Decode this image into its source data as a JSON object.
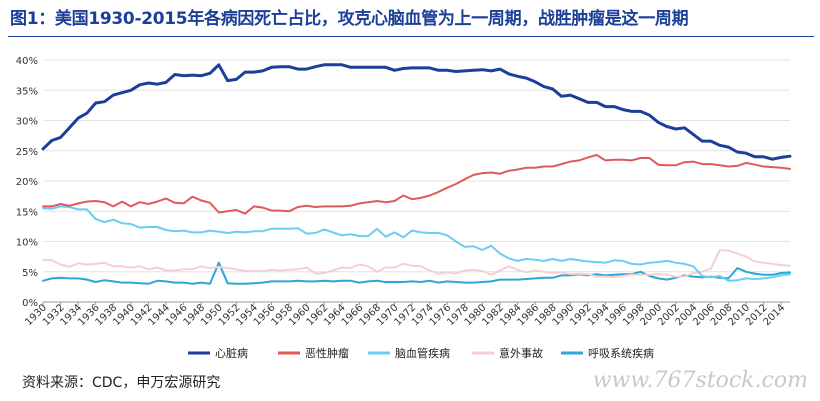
{
  "title": "图1：美国1930-2015年各病因死亡占比，攻克心脑血管为上一周期，战胜肿瘤是这一周期",
  "source": "资料来源：CDC，申万宏源研究",
  "watermark": "www.767stock.com",
  "chart_data": {
    "type": "line",
    "title": "",
    "xlabel": "",
    "ylabel": "",
    "ylim": [
      0,
      40
    ],
    "yticks": [
      0,
      5,
      10,
      15,
      20,
      25,
      30,
      35,
      40
    ],
    "ytick_labels": [
      "0%",
      "5%",
      "10%",
      "15%",
      "20%",
      "25%",
      "30%",
      "35%",
      "40%"
    ],
    "xlim": [
      1930,
      2015
    ],
    "xticks": [
      1930,
      1932,
      1934,
      1936,
      1938,
      1940,
      1942,
      1944,
      1946,
      1948,
      1950,
      1952,
      1954,
      1956,
      1958,
      1960,
      1962,
      1964,
      1966,
      1968,
      1970,
      1972,
      1974,
      1976,
      1978,
      1980,
      1982,
      1984,
      1986,
      1988,
      1990,
      1992,
      1994,
      1996,
      1998,
      2000,
      2002,
      2004,
      2006,
      2008,
      2010,
      2012,
      2014
    ],
    "grid": "horizontal",
    "legend": "bottom",
    "x": [
      1930,
      1931,
      1932,
      1933,
      1934,
      1935,
      1936,
      1937,
      1938,
      1939,
      1940,
      1941,
      1942,
      1943,
      1944,
      1945,
      1946,
      1947,
      1948,
      1949,
      1950,
      1951,
      1952,
      1953,
      1954,
      1955,
      1956,
      1957,
      1958,
      1959,
      1960,
      1961,
      1962,
      1963,
      1964,
      1965,
      1966,
      1967,
      1968,
      1969,
      1970,
      1971,
      1972,
      1973,
      1974,
      1975,
      1976,
      1977,
      1978,
      1979,
      1980,
      1981,
      1982,
      1983,
      1984,
      1985,
      1986,
      1987,
      1988,
      1989,
      1990,
      1991,
      1992,
      1993,
      1994,
      1995,
      1996,
      1997,
      1998,
      1999,
      2000,
      2001,
      2002,
      2003,
      2004,
      2005,
      2006,
      2007,
      2008,
      2009,
      2010,
      2011,
      2012,
      2013,
      2014,
      2015
    ],
    "series": [
      {
        "name": "心脏病",
        "color": "#1c3f99",
        "width": 3,
        "values": [
          25.3,
          26.7,
          27.2,
          28.8,
          30.4,
          31.2,
          32.9,
          33.1,
          34.2,
          34.6,
          35.0,
          35.9,
          36.2,
          36.0,
          36.3,
          37.6,
          37.4,
          37.5,
          37.4,
          37.8,
          39.2,
          36.6,
          36.8,
          38.0,
          38.0,
          38.2,
          38.8,
          38.9,
          38.9,
          38.5,
          38.5,
          38.9,
          39.2,
          39.2,
          39.2,
          38.8,
          38.8,
          38.8,
          38.8,
          38.8,
          38.3,
          38.6,
          38.7,
          38.7,
          38.7,
          38.3,
          38.3,
          38.1,
          38.2,
          38.3,
          38.4,
          38.2,
          38.5,
          37.7,
          37.3,
          37.0,
          36.4,
          35.6,
          35.2,
          34.0,
          34.2,
          33.6,
          33.0,
          33.0,
          32.3,
          32.3,
          31.8,
          31.5,
          31.5,
          30.9,
          29.7,
          29.0,
          28.6,
          28.8,
          27.7,
          26.6,
          26.6,
          25.9,
          25.6,
          24.8,
          24.6,
          24.0,
          24.0,
          23.6,
          23.9,
          24.1
        ]
      },
      {
        "name": "恶性肿瘤",
        "color": "#e05a5a",
        "width": 2,
        "values": [
          15.8,
          15.8,
          16.2,
          15.9,
          16.3,
          16.6,
          16.7,
          16.5,
          15.8,
          16.6,
          15.8,
          16.5,
          16.2,
          16.6,
          17.1,
          16.4,
          16.3,
          17.4,
          16.8,
          16.4,
          14.8,
          15.0,
          15.2,
          14.6,
          15.8,
          15.6,
          15.1,
          15.1,
          15.0,
          15.7,
          15.9,
          15.7,
          15.8,
          15.8,
          15.8,
          15.9,
          16.3,
          16.5,
          16.7,
          16.5,
          16.7,
          17.6,
          17.0,
          17.2,
          17.6,
          18.2,
          18.9,
          19.5,
          20.3,
          21.0,
          21.3,
          21.4,
          21.2,
          21.7,
          21.9,
          22.2,
          22.2,
          22.4,
          22.4,
          22.8,
          23.2,
          23.4,
          23.9,
          24.3,
          23.4,
          23.5,
          23.5,
          23.4,
          23.8,
          23.8,
          22.7,
          22.6,
          22.6,
          23.1,
          23.2,
          22.8,
          22.8,
          22.6,
          22.4,
          22.5,
          23.0,
          22.7,
          22.4,
          22.3,
          22.2,
          22.0
        ]
      },
      {
        "name": "脑血管疾病",
        "color": "#6ccdf0",
        "width": 2,
        "values": [
          15.5,
          15.4,
          15.8,
          15.7,
          15.3,
          15.3,
          13.7,
          13.2,
          13.6,
          13.0,
          12.9,
          12.3,
          12.4,
          12.4,
          11.9,
          11.7,
          11.8,
          11.5,
          11.5,
          11.8,
          11.6,
          11.4,
          11.6,
          11.5,
          11.7,
          11.7,
          12.1,
          12.1,
          12.1,
          12.2,
          11.3,
          11.4,
          12.0,
          11.5,
          11.0,
          11.2,
          10.9,
          10.9,
          12.1,
          10.8,
          11.5,
          10.7,
          11.8,
          11.5,
          11.4,
          11.4,
          11.0,
          10.0,
          9.1,
          9.2,
          8.6,
          9.3,
          8.0,
          7.2,
          6.8,
          7.1,
          7.0,
          6.8,
          7.1,
          6.8,
          7.1,
          6.9,
          6.7,
          6.6,
          6.5,
          6.9,
          6.8,
          6.3,
          6.2,
          6.5,
          6.6,
          6.8,
          6.5,
          6.3,
          5.9,
          4.3,
          4.1,
          4.3,
          3.5,
          3.6,
          3.9,
          3.8,
          3.9,
          4.1,
          4.4,
          4.6
        ]
      },
      {
        "name": "意外事故",
        "color": "#f7cfd0",
        "width": 2,
        "values": [
          7.0,
          6.9,
          6.2,
          5.8,
          6.4,
          6.2,
          6.3,
          6.5,
          5.9,
          5.9,
          5.7,
          5.9,
          5.4,
          5.7,
          5.2,
          5.2,
          5.4,
          5.4,
          5.9,
          5.6,
          5.8,
          5.6,
          5.4,
          5.1,
          5.1,
          5.1,
          5.3,
          5.2,
          5.3,
          5.4,
          5.7,
          4.7,
          4.8,
          5.2,
          5.7,
          5.6,
          6.2,
          5.9,
          5.0,
          5.7,
          5.7,
          6.3,
          6.0,
          5.9,
          5.2,
          4.7,
          4.9,
          4.7,
          5.2,
          5.3,
          5.1,
          4.5,
          5.2,
          5.9,
          5.3,
          4.9,
          5.2,
          5.0,
          4.8,
          4.9,
          4.6,
          4.7,
          4.6,
          4.2,
          4.2,
          4.1,
          4.3,
          4.5,
          4.5,
          4.5,
          4.6,
          4.5,
          4.2,
          4.2,
          4.8,
          5.0,
          5.5,
          8.6,
          8.5,
          8.0,
          7.5,
          6.7,
          6.5,
          6.3,
          6.1,
          6.0
        ]
      },
      {
        "name": "呼吸系统疾病",
        "color": "#2aa7d6",
        "width": 2,
        "values": [
          3.5,
          3.9,
          4.0,
          3.9,
          3.9,
          3.7,
          3.3,
          3.6,
          3.4,
          3.2,
          3.2,
          3.1,
          3.0,
          3.5,
          3.4,
          3.2,
          3.2,
          3.0,
          3.2,
          3.0,
          6.5,
          3.1,
          3.0,
          3.0,
          3.1,
          3.2,
          3.4,
          3.4,
          3.4,
          3.5,
          3.4,
          3.4,
          3.5,
          3.4,
          3.5,
          3.5,
          3.2,
          3.4,
          3.5,
          3.3,
          3.3,
          3.3,
          3.4,
          3.3,
          3.5,
          3.2,
          3.4,
          3.3,
          3.2,
          3.2,
          3.3,
          3.4,
          3.7,
          3.7,
          3.7,
          3.8,
          3.9,
          4.0,
          4.0,
          4.4,
          4.4,
          4.6,
          4.4,
          4.6,
          4.4,
          4.5,
          4.6,
          4.6,
          5.0,
          4.3,
          3.9,
          3.7,
          4.0,
          4.4,
          4.2,
          4.1,
          4.2,
          4.0,
          3.9,
          5.6,
          5.0,
          4.7,
          4.5,
          4.5,
          4.8,
          4.9
        ]
      }
    ]
  }
}
